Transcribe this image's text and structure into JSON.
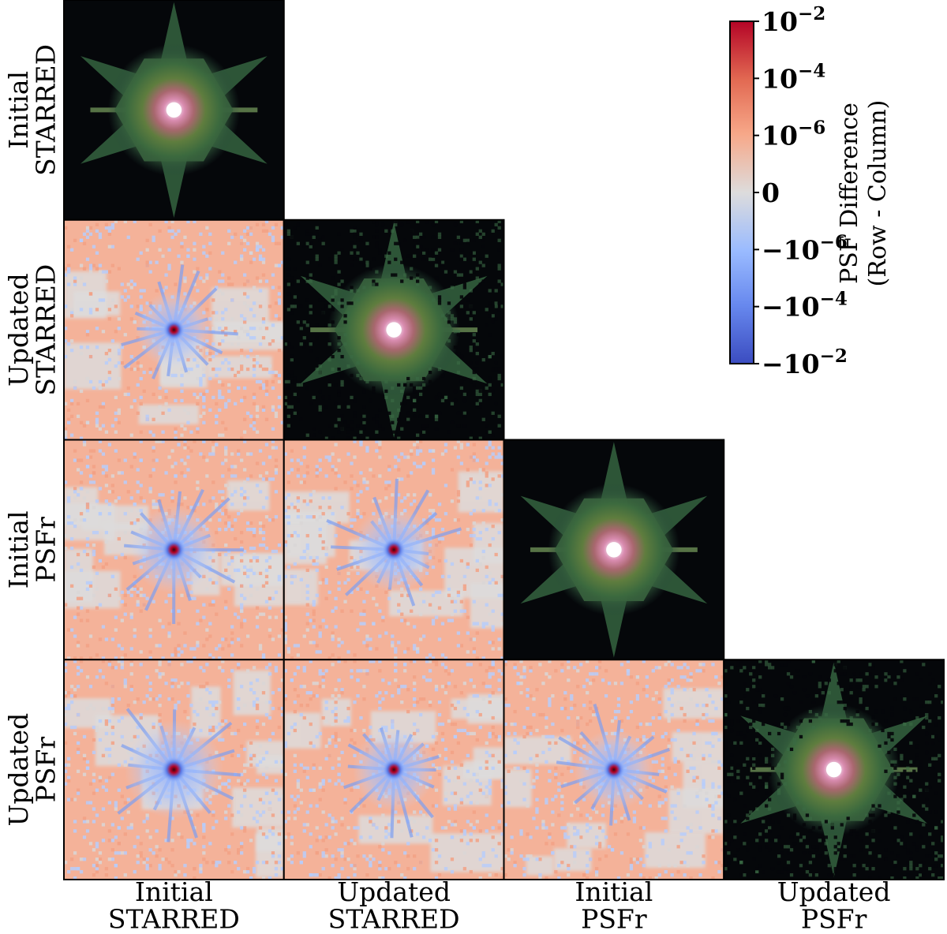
{
  "chart_data": {
    "type": "heatmap",
    "layout": "corner-plot",
    "description": "Lower-triangular grid: diagonal panels show each PSF model image; off-diagonal panels show the PSF difference (row minus column).",
    "models": [
      {
        "id": "initial_starred",
        "line1": "Initial",
        "line2": "STARRED",
        "diag_style": "smooth"
      },
      {
        "id": "updated_starred",
        "line1": "Updated",
        "line2": "STARRED",
        "diag_style": "noisy"
      },
      {
        "id": "initial_psfr",
        "line1": "Initial",
        "line2": "PSFr",
        "diag_style": "smooth"
      },
      {
        "id": "updated_psfr",
        "line1": "Updated",
        "line2": "PSFr",
        "diag_style": "noisy"
      }
    ],
    "colorbar": {
      "label_line1": "PSF Difference",
      "label_line2": "(Row - Column)",
      "scale": "symlog",
      "range": [
        -0.01,
        0.01
      ],
      "colormap": "coolwarm",
      "ticks": [
        {
          "value": 0.01,
          "mant": "10",
          "exp": "−2",
          "sign": ""
        },
        {
          "value": 0.0001,
          "mant": "10",
          "exp": "−4",
          "sign": ""
        },
        {
          "value": 1e-06,
          "mant": "10",
          "exp": "−6",
          "sign": ""
        },
        {
          "value": 0,
          "mant": "0",
          "exp": "",
          "sign": ""
        },
        {
          "value": -1e-06,
          "mant": "10",
          "exp": "−6",
          "sign": "−"
        },
        {
          "value": -0.0001,
          "mant": "10",
          "exp": "−4",
          "sign": "−"
        },
        {
          "value": -0.01,
          "mant": "10",
          "exp": "−2",
          "sign": "−"
        }
      ]
    },
    "colors": {
      "cmap_neg": "#3b4cc0",
      "cmap_mid": "#dddcdc",
      "cmap_pos": "#b40426",
      "diff_background": "#f4b299",
      "psf_background": "#05070a"
    }
  }
}
